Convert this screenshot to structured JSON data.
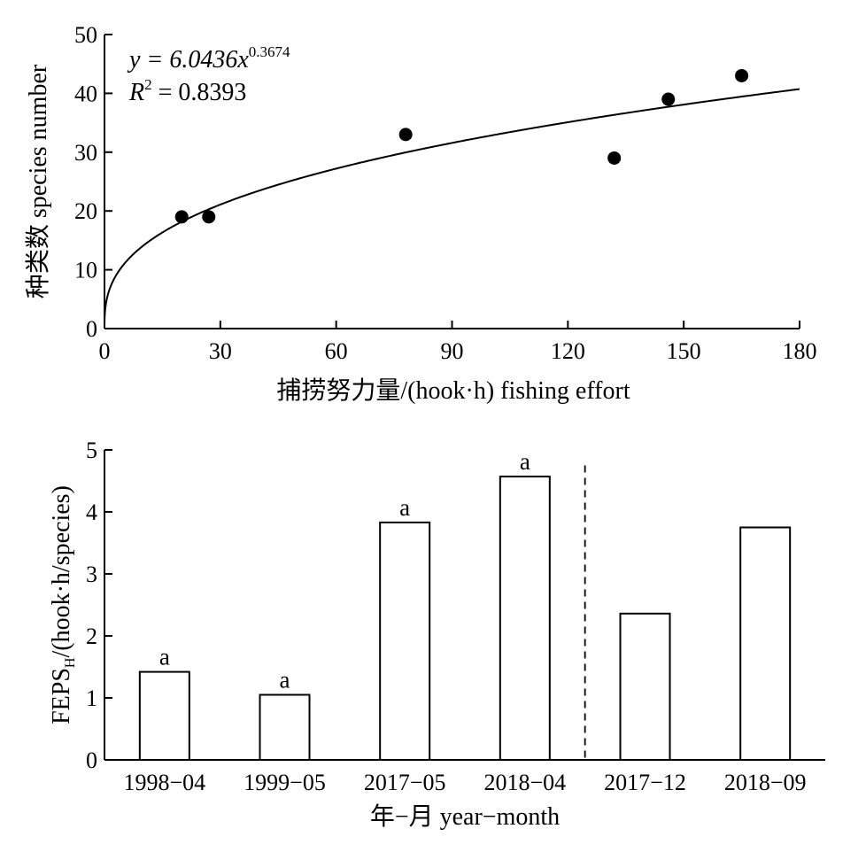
{
  "chart_data": [
    {
      "type": "scatter",
      "xlabel": "捕捞努力量/(hook·h) fishing effort",
      "ylabel": "种类数 species number",
      "xlim": [
        0,
        180
      ],
      "ylim": [
        0,
        50
      ],
      "xticks": [
        "0",
        "30",
        "60",
        "90",
        "120",
        "150",
        "180"
      ],
      "yticks": [
        "0",
        "10",
        "20",
        "30",
        "40",
        "50"
      ],
      "points": [
        {
          "x": 20,
          "y": 19
        },
        {
          "x": 27,
          "y": 19
        },
        {
          "x": 78,
          "y": 33
        },
        {
          "x": 132,
          "y": 29
        },
        {
          "x": 146,
          "y": 39
        },
        {
          "x": 165,
          "y": 43
        }
      ],
      "fit": {
        "type": "power",
        "a": 6.0436,
        "b": 0.3674,
        "equation_prefix": "y = 6.0436x",
        "equation_exponent": "0.3674",
        "r2_prefix": "R",
        "r2_power": "2",
        "r2_value": " = 0.8393"
      },
      "grid": false
    },
    {
      "type": "bar",
      "ylabel_main": "FEPS",
      "ylabel_sub": "H",
      "ylabel_tail": "/(hook·h/species)",
      "xlabel": "年−月 year−month",
      "ylim": [
        0,
        5
      ],
      "yticks": [
        "0",
        "1",
        "2",
        "3",
        "4",
        "5"
      ],
      "categories": [
        "1998−04",
        "1999−05",
        "2017−05",
        "2018−04",
        "2017−12",
        "2018−09"
      ],
      "values": [
        1.42,
        1.05,
        3.83,
        4.57,
        2.36,
        3.75
      ],
      "letters": [
        "a",
        "a",
        "a",
        "a",
        "",
        ""
      ],
      "divider_after_index": 3,
      "bar_fill": "#ffffff",
      "bar_stroke": "#000000",
      "grid": false
    }
  ]
}
